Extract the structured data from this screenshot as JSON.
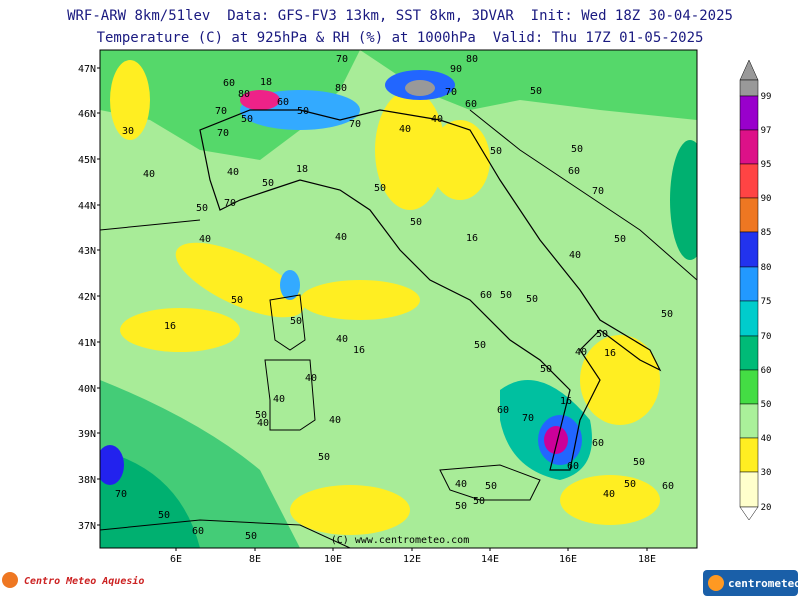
{
  "header": {
    "line1": "WRF-ARW 8km/51lev  Data: GFS-FV3 13km, SST 8km, 3DVAR  Init: Wed 18Z 30-04-2025",
    "line2": "Temperature (C) at 925hPa & RH (%) at 1000hPa  Valid: Thu 17Z 01-05-2025"
  },
  "map": {
    "lat_labels": [
      "47N",
      "46N",
      "45N",
      "44N",
      "43N",
      "42N",
      "41N",
      "40N",
      "39N",
      "38N",
      "37N"
    ],
    "lon_labels": [
      "6E",
      "8E",
      "10E",
      "12E",
      "14E",
      "16E",
      "18E"
    ],
    "contour_labels": [
      "70",
      "80",
      "90",
      "60",
      "18",
      "80",
      "60",
      "50",
      "80",
      "70",
      "60",
      "50",
      "70",
      "50",
      "30",
      "70",
      "70",
      "40",
      "40",
      "50",
      "50",
      "40",
      "40",
      "18",
      "50",
      "60",
      "50",
      "70",
      "50",
      "70",
      "50",
      "16",
      "40",
      "40",
      "40",
      "50",
      "50",
      "16",
      "50",
      "60",
      "50",
      "50",
      "50",
      "50",
      "40",
      "16",
      "50",
      "40",
      "16",
      "40",
      "50",
      "40",
      "60",
      "16",
      "70",
      "50",
      "40",
      "40",
      "60",
      "50",
      "50",
      "60",
      "70",
      "40",
      "50",
      "50",
      "40",
      "60",
      "50",
      "50",
      "50",
      "60",
      "50"
    ]
  },
  "colorbar": {
    "labels": [
      "99",
      "97",
      "95",
      "90",
      "85",
      "80",
      "75",
      "70",
      "60",
      "50",
      "40",
      "30",
      "20"
    ]
  },
  "credit": "(C) www.centrometeo.com",
  "footer": {
    "left": "Centro Meteo Aquesio",
    "right": "centrometeo"
  }
}
